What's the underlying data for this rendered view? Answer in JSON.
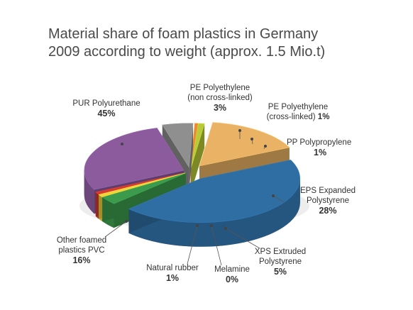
{
  "chart_data": {
    "type": "pie",
    "title_lines": [
      "Material share of foam plastics in Germany",
      "2009 according to weight (approx. 1.5 Mio.t)"
    ],
    "series": [
      {
        "name_lines": [
          "PUR Polyurethane"
        ],
        "value_label": "45%",
        "value": 45,
        "color": "#2f6ea3"
      },
      {
        "name_lines": [
          "PE Polyethylene",
          "(non cross-linked)"
        ],
        "value_label": "3%",
        "value": 3,
        "color": "#3b9a4c"
      },
      {
        "name_lines": [
          "PE Polyethylene",
          "(cross-linked)"
        ],
        "value_label": "1%",
        "value": 1,
        "color": "#f0d23a"
      },
      {
        "name_lines": [
          "PP Polypropylene"
        ],
        "value_label": "1%",
        "value": 1,
        "color": "#d63a2f"
      },
      {
        "name_lines": [
          "EPS Expanded",
          "Polystyrene"
        ],
        "value_label": "28%",
        "value": 28,
        "color": "#8c5b9e"
      },
      {
        "name_lines": [
          "XPS Extruded",
          "Polystyrene"
        ],
        "value_label": "5%",
        "value": 5,
        "color": "#8f8f8f"
      },
      {
        "name_lines": [
          "Melamine"
        ],
        "value_label": "0%",
        "value": 0.5,
        "color": "#e98a2e"
      },
      {
        "name_lines": [
          "Natural rubber"
        ],
        "value_label": "1%",
        "value": 1,
        "color": "#b8c93a"
      },
      {
        "name_lines": [
          "Other foamed",
          "plastics PVC"
        ],
        "value_label": "16%",
        "value": 16,
        "color": "#e9b264"
      }
    ]
  }
}
